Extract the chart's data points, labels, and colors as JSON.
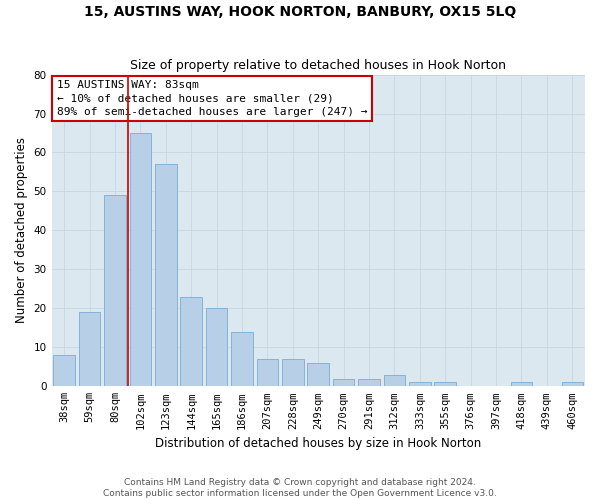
{
  "title": "15, AUSTINS WAY, HOOK NORTON, BANBURY, OX15 5LQ",
  "subtitle": "Size of property relative to detached houses in Hook Norton",
  "xlabel": "Distribution of detached houses by size in Hook Norton",
  "ylabel": "Number of detached properties",
  "categories": [
    "38sqm",
    "59sqm",
    "80sqm",
    "102sqm",
    "123sqm",
    "144sqm",
    "165sqm",
    "186sqm",
    "207sqm",
    "228sqm",
    "249sqm",
    "270sqm",
    "291sqm",
    "312sqm",
    "333sqm",
    "355sqm",
    "376sqm",
    "397sqm",
    "418sqm",
    "439sqm",
    "460sqm"
  ],
  "values": [
    8,
    19,
    49,
    65,
    57,
    23,
    20,
    14,
    7,
    7,
    6,
    2,
    2,
    3,
    1,
    1,
    0,
    0,
    1,
    0,
    1
  ],
  "bar_color": "#b8cfe8",
  "bar_edgecolor": "#7aadd4",
  "bar_linewidth": 0.6,
  "vline_index": 2,
  "vline_color": "#cc0000",
  "vline_linewidth": 1.2,
  "annotation_line1": "15 AUSTINS WAY: 83sqm",
  "annotation_line2": "← 10% of detached houses are smaller (29)",
  "annotation_line3": "89% of semi-detached houses are larger (247) →",
  "annotation_box_color": "#cc0000",
  "ylim": [
    0,
    80
  ],
  "yticks": [
    0,
    10,
    20,
    30,
    40,
    50,
    60,
    70,
    80
  ],
  "grid_color": "#c8d4e0",
  "bg_color": "#dce8f0",
  "footer1": "Contains HM Land Registry data © Crown copyright and database right 2024.",
  "footer2": "Contains public sector information licensed under the Open Government Licence v3.0.",
  "title_fontsize": 10,
  "subtitle_fontsize": 9,
  "axis_label_fontsize": 8.5,
  "tick_fontsize": 7.5,
  "annotation_fontsize": 8,
  "footer_fontsize": 6.5
}
